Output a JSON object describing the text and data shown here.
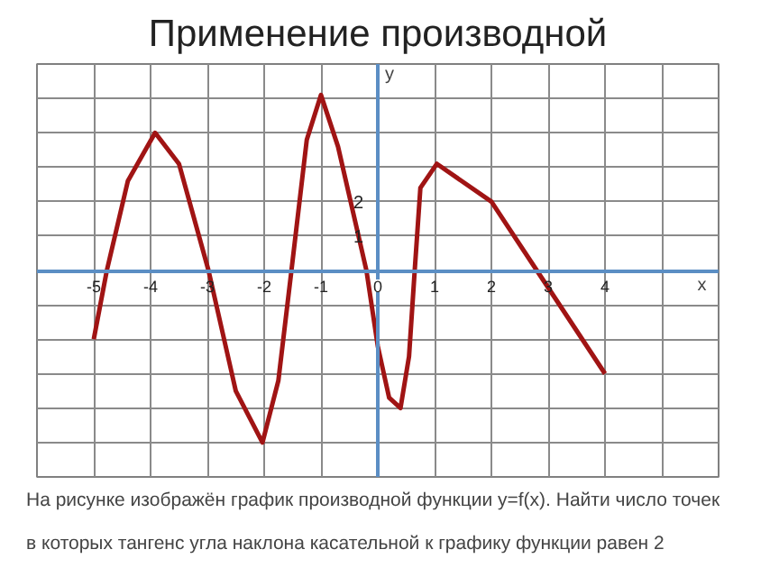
{
  "chart_data": {
    "type": "line",
    "title": "Применение производной",
    "xlabel": "x",
    "ylabel": "y",
    "annotations": [
      "На рисунке изображён график производной функции y=f(x). Найти число точек",
      "в которых тангенс угла наклона касательной к графику функции равен 2"
    ],
    "x": [
      -5,
      -4.77,
      -4.4,
      -3.92,
      -3.5,
      -2.98,
      -2.5,
      -2.03,
      -1.75,
      -1.52,
      -1.25,
      -1.0,
      -0.7,
      -0.2,
      0,
      0.2,
      0.4,
      0.55,
      0.65,
      0.75,
      1.04,
      2,
      2.8,
      4
    ],
    "series": [
      {
        "color": "#a01414",
        "values": [
          -2,
          0,
          2.6,
          4,
          3.1,
          0,
          -3.5,
          -5.0,
          -3.2,
          0,
          3.8,
          5.1,
          3.6,
          0,
          -2.2,
          -3.7,
          -4.0,
          -2.5,
          0,
          2.4,
          3.1,
          2,
          0,
          -3
        ]
      }
    ],
    "xlim": [
      -6,
      6
    ],
    "ylim": [
      -6,
      6
    ],
    "xticks": [
      -5,
      -4,
      -3,
      -2,
      -1,
      0,
      1,
      2,
      3,
      4,
      {
        "value": 5,
        "label": null
      }
    ],
    "yticks": [
      {
        "value": -5,
        "label": null
      },
      {
        "value": -4,
        "label": null
      },
      {
        "value": -3,
        "label": null
      },
      {
        "value": -2,
        "label": null
      },
      {
        "value": -1,
        "label": null
      },
      {
        "value": 0,
        "label": null
      },
      1,
      2,
      {
        "value": 3,
        "label": null
      },
      {
        "value": 4,
        "label": null
      },
      {
        "value": 5,
        "label": null
      }
    ],
    "grid": true,
    "marker": "none",
    "line_style": "solid"
  }
}
